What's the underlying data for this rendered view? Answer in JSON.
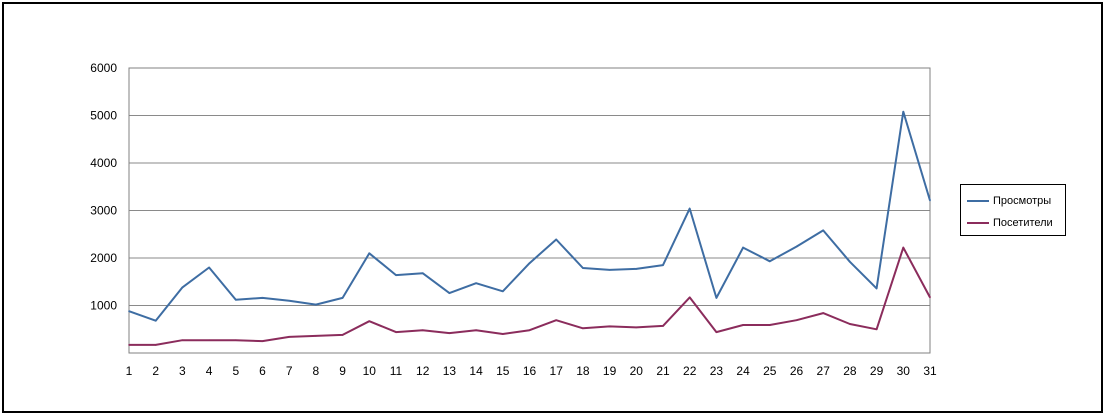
{
  "chart_data": {
    "type": "line",
    "x": [
      1,
      2,
      3,
      4,
      5,
      6,
      7,
      8,
      9,
      10,
      11,
      12,
      13,
      14,
      15,
      16,
      17,
      18,
      19,
      20,
      21,
      22,
      23,
      24,
      25,
      26,
      27,
      28,
      29,
      30,
      31
    ],
    "categories": [
      "1",
      "2",
      "3",
      "4",
      "5",
      "6",
      "7",
      "8",
      "9",
      "10",
      "11",
      "12",
      "13",
      "14",
      "15",
      "16",
      "17",
      "18",
      "19",
      "20",
      "21",
      "22",
      "23",
      "24",
      "25",
      "26",
      "27",
      "28",
      "29",
      "30",
      "31"
    ],
    "y_ticks": [
      "1000",
      "2000",
      "3000",
      "4000",
      "5000",
      "6000"
    ],
    "ylim": [
      0,
      6000
    ],
    "grid": "horizontal",
    "legend_position": "right",
    "title": "",
    "xlabel": "",
    "ylabel": "",
    "series": [
      {
        "name": "Просмотры",
        "color": "#3e6da3",
        "values": [
          880,
          680,
          1380,
          1800,
          1120,
          1160,
          1100,
          1020,
          1160,
          2100,
          1640,
          1680,
          1260,
          1470,
          1300,
          1890,
          2390,
          1790,
          1750,
          1770,
          1850,
          3040,
          1160,
          2220,
          1930,
          2240,
          2580,
          1920,
          1360,
          5080,
          3210
        ]
      },
      {
        "name": "Посетители",
        "color": "#8b2c5c",
        "values": [
          170,
          170,
          270,
          270,
          270,
          250,
          340,
          360,
          380,
          670,
          440,
          480,
          420,
          480,
          400,
          480,
          690,
          520,
          560,
          540,
          570,
          1170,
          440,
          590,
          590,
          690,
          840,
          610,
          500,
          2220,
          1170
        ]
      }
    ]
  }
}
